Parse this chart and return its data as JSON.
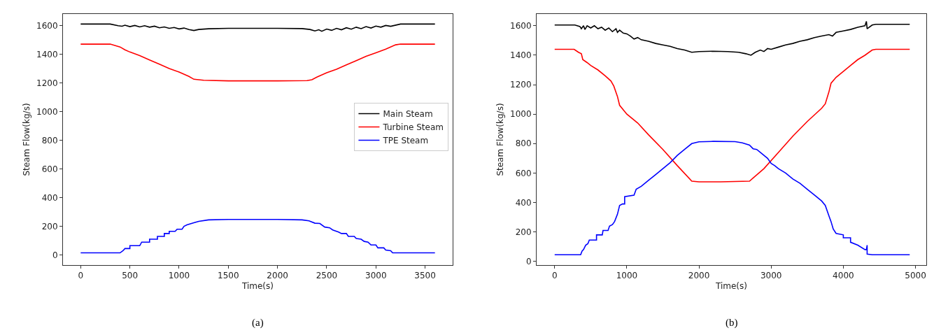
{
  "chart_data": [
    {
      "type": "line",
      "xlabel": "Time(s)",
      "ylabel": "Steam Flow(kg/s)",
      "annotations": [
        "(a)"
      ],
      "xlim": [
        -180,
        3780
      ],
      "xticks": [
        0,
        500,
        1000,
        1500,
        2000,
        2500,
        3000,
        3500
      ],
      "ylim": [
        -70,
        1680
      ],
      "yticks": [
        0,
        200,
        400,
        600,
        800,
        1000,
        1200,
        1400,
        1600
      ],
      "grid": false,
      "legend": "right",
      "marker": "none",
      "line_style": "solid",
      "series": [
        {
          "name": "Main Steam",
          "color": "#000000",
          "x": [
            0,
            300,
            380,
            420,
            450,
            500,
            550,
            600,
            650,
            700,
            750,
            800,
            850,
            900,
            950,
            1000,
            1050,
            1100,
            1150,
            1200,
            1300,
            1500,
            2000,
            2250,
            2330,
            2380,
            2420,
            2450,
            2500,
            2550,
            2600,
            2650,
            2700,
            2750,
            2800,
            2850,
            2900,
            2950,
            3000,
            3050,
            3100,
            3150,
            3250,
            3600
          ],
          "values": [
            1610,
            1610,
            1598,
            1595,
            1602,
            1592,
            1600,
            1590,
            1598,
            1588,
            1595,
            1584,
            1590,
            1580,
            1586,
            1576,
            1582,
            1572,
            1565,
            1572,
            1577,
            1580,
            1580,
            1578,
            1572,
            1562,
            1570,
            1560,
            1575,
            1566,
            1580,
            1570,
            1584,
            1574,
            1588,
            1578,
            1592,
            1582,
            1596,
            1588,
            1600,
            1594,
            1610,
            1610
          ]
        },
        {
          "name": "Turbine Steam",
          "color": "#ff0000",
          "x": [
            0,
            300,
            400,
            450,
            500,
            600,
            700,
            800,
            900,
            1000,
            1100,
            1150,
            1250,
            1500,
            2000,
            2300,
            2350,
            2400,
            2500,
            2600,
            2700,
            2800,
            2900,
            3000,
            3100,
            3200,
            3250,
            3600
          ],
          "values": [
            1470,
            1470,
            1450,
            1430,
            1415,
            1390,
            1360,
            1330,
            1300,
            1275,
            1245,
            1225,
            1218,
            1214,
            1214,
            1216,
            1222,
            1240,
            1270,
            1295,
            1325,
            1355,
            1385,
            1410,
            1435,
            1465,
            1470,
            1470
          ]
        },
        {
          "name": "TPE Steam",
          "color": "#0000ff",
          "x": [
            0,
            400,
            430,
            450,
            500,
            500,
            600,
            620,
            700,
            700,
            780,
            780,
            850,
            850,
            900,
            900,
            960,
            980,
            1030,
            1050,
            1080,
            1150,
            1200,
            1300,
            1500,
            2000,
            2250,
            2320,
            2380,
            2430,
            2480,
            2530,
            2560,
            2620,
            2650,
            2700,
            2720,
            2780,
            2800,
            2850,
            2880,
            2920,
            2950,
            3000,
            3020,
            3080,
            3100,
            3150,
            3170,
            3600
          ],
          "values": [
            15,
            15,
            30,
            45,
            45,
            65,
            65,
            90,
            90,
            110,
            110,
            130,
            130,
            150,
            150,
            165,
            165,
            180,
            180,
            200,
            210,
            225,
            235,
            245,
            248,
            248,
            245,
            238,
            222,
            220,
            195,
            190,
            175,
            160,
            150,
            150,
            130,
            130,
            115,
            110,
            95,
            90,
            70,
            70,
            50,
            50,
            35,
            30,
            15,
            15
          ]
        }
      ]
    },
    {
      "type": "line",
      "xlabel": "Time(s)",
      "ylabel": "Steam Flow(kg/s)",
      "annotations": [
        "(b)"
      ],
      "xlim": [
        -250,
        5150
      ],
      "xticks": [
        0,
        1000,
        2000,
        3000,
        4000,
        5000
      ],
      "ylim": [
        -25,
        1680
      ],
      "yticks": [
        0,
        200,
        400,
        600,
        800,
        1000,
        1200,
        1400,
        1600
      ],
      "grid": false,
      "legend": false,
      "marker": "none",
      "line_style": "solid",
      "series": [
        {
          "color": "#000000",
          "x": [
            0,
            280,
            350,
            370,
            400,
            420,
            450,
            500,
            550,
            600,
            650,
            700,
            750,
            800,
            850,
            870,
            900,
            950,
            1000,
            1050,
            1100,
            1150,
            1200,
            1300,
            1400,
            1500,
            1600,
            1700,
            1800,
            1900,
            2000,
            2200,
            2400,
            2550,
            2650,
            2720,
            2780,
            2850,
            2900,
            2950,
            3000,
            3100,
            3200,
            3300,
            3400,
            3500,
            3600,
            3700,
            3800,
            3850,
            3900,
            4000,
            4100,
            4200,
            4300,
            4320,
            4330,
            4400,
            4450,
            4920
          ],
          "values": [
            1605,
            1605,
            1595,
            1580,
            1600,
            1575,
            1600,
            1585,
            1600,
            1580,
            1590,
            1570,
            1585,
            1560,
            1580,
            1555,
            1570,
            1550,
            1545,
            1530,
            1510,
            1520,
            1505,
            1495,
            1480,
            1470,
            1460,
            1445,
            1435,
            1420,
            1425,
            1427,
            1425,
            1420,
            1410,
            1400,
            1420,
            1435,
            1425,
            1445,
            1440,
            1455,
            1470,
            1480,
            1495,
            1505,
            1520,
            1530,
            1540,
            1530,
            1555,
            1565,
            1575,
            1590,
            1600,
            1630,
            1580,
            1605,
            1610,
            1610
          ]
        },
        {
          "color": "#ff0000",
          "x": [
            0,
            270,
            330,
            370,
            390,
            450,
            500,
            600,
            700,
            780,
            820,
            870,
            900,
            1000,
            1150,
            1300,
            1500,
            1700,
            1900,
            2000,
            2300,
            2700,
            2900,
            3100,
            3300,
            3500,
            3700,
            3750,
            3800,
            3830,
            3900,
            4000,
            4100,
            4200,
            4300,
            4400,
            4450,
            4920
          ],
          "values": [
            1440,
            1440,
            1420,
            1410,
            1370,
            1350,
            1330,
            1300,
            1260,
            1225,
            1190,
            1120,
            1060,
            1000,
            940,
            860,
            760,
            650,
            545,
            540,
            540,
            545,
            630,
            740,
            850,
            950,
            1040,
            1070,
            1150,
            1210,
            1250,
            1290,
            1330,
            1370,
            1400,
            1435,
            1440,
            1440
          ]
        },
        {
          "color": "#0000ff",
          "x": [
            0,
            360,
            380,
            400,
            430,
            460,
            480,
            580,
            580,
            660,
            670,
            740,
            760,
            800,
            830,
            870,
            900,
            940,
            970,
            970,
            1100,
            1130,
            1200,
            1300,
            1400,
            1500,
            1600,
            1700,
            1800,
            1900,
            2000,
            2200,
            2500,
            2600,
            2700,
            2750,
            2800,
            2850,
            2900,
            2950,
            3000,
            3050,
            3100,
            3200,
            3300,
            3400,
            3500,
            3600,
            3700,
            3750,
            3800,
            3830,
            3860,
            3900,
            4000,
            4000,
            4100,
            4100,
            4200,
            4300,
            4320,
            4330,
            4330,
            4400,
            4920
          ],
          "values": [
            45,
            45,
            70,
            80,
            110,
            120,
            145,
            145,
            180,
            180,
            210,
            210,
            240,
            250,
            270,
            320,
            380,
            390,
            390,
            440,
            450,
            490,
            510,
            550,
            590,
            630,
            670,
            720,
            760,
            800,
            812,
            815,
            813,
            805,
            790,
            765,
            760,
            740,
            720,
            700,
            665,
            650,
            630,
            600,
            560,
            530,
            490,
            450,
            410,
            380,
            310,
            270,
            220,
            190,
            180,
            160,
            160,
            130,
            110,
            80,
            80,
            110,
            50,
            45,
            45
          ]
        }
      ]
    }
  ]
}
